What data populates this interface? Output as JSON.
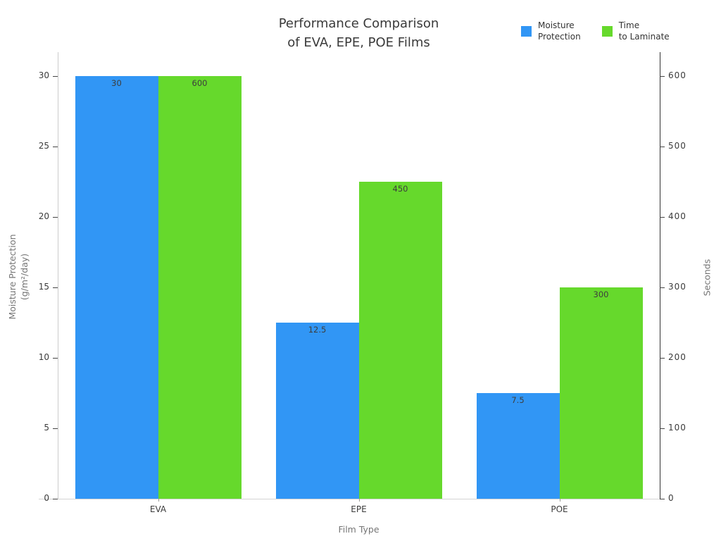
{
  "title": {
    "line1": "Performance Comparison",
    "line2": "of EVA, EPE, POE Films"
  },
  "legend": [
    {
      "line1": "Moisture",
      "line2": "Protection",
      "color": "#3196f5"
    },
    {
      "line1": "Time",
      "line2": "to Laminate",
      "color": "#66d92c"
    }
  ],
  "axes": {
    "x": {
      "title": "Film Type",
      "categories": [
        "EVA",
        "EPE",
        "POE"
      ]
    },
    "y_left": {
      "title_line1": "Moisture Protection",
      "title_line2": "(g/m²/day)",
      "ticks": [
        0,
        5,
        10,
        15,
        20,
        25,
        30
      ],
      "max": 31.5
    },
    "y_right": {
      "title": "Seconds",
      "ticks": [
        0,
        100,
        200,
        300,
        400,
        500,
        600
      ],
      "max": 630
    }
  },
  "chart_data": {
    "type": "bar",
    "title": "Performance Comparison of EVA, EPE, POE Films",
    "xlabel": "Film Type",
    "ylabel_left": "Moisture Protection (g/m²/day)",
    "ylabel_right": "Seconds",
    "categories": [
      "EVA",
      "EPE",
      "POE"
    ],
    "series": [
      {
        "name": "Moisture Protection",
        "axis": "left",
        "color": "#3196f5",
        "values": [
          30,
          12.5,
          7.5
        ],
        "labels": [
          "30",
          "12.5",
          "7.5"
        ]
      },
      {
        "name": "Time to Laminate",
        "axis": "right",
        "color": "#66d92c",
        "values": [
          600,
          450,
          300
        ],
        "labels": [
          "600",
          "450",
          "300"
        ]
      }
    ],
    "ylim_left": [
      0,
      31.5
    ],
    "ylim_right": [
      0,
      630
    ],
    "grid": false,
    "legend_position": "top-right",
    "bar_label_position": "inside-top"
  },
  "colors": {
    "blue_series": "#3196f5",
    "green_series": "#66d92c",
    "tick_label": "#3b3b3b",
    "axis_title": "#757575",
    "data_label": "#3d3d3d",
    "spine_light": "#cccccc",
    "spine_dark": "#333333"
  }
}
